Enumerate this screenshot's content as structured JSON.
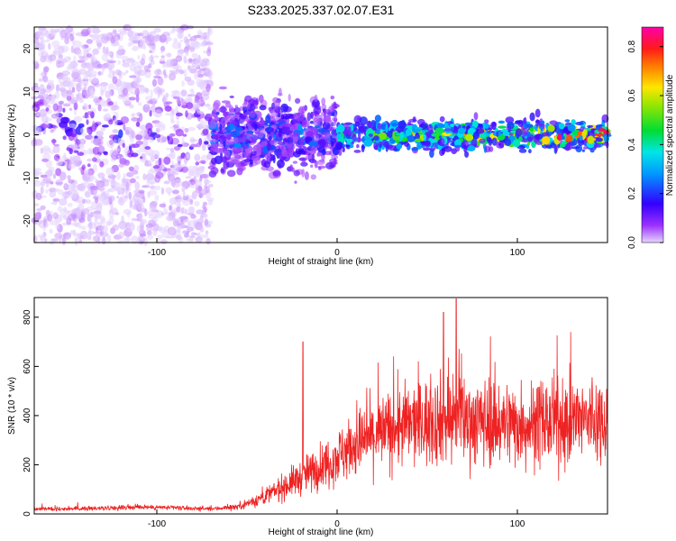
{
  "chart_data": [
    {
      "type": "heatmap",
      "title": "S233.2025.337.02.07.E31",
      "xlabel": "Height of straight line (km)",
      "ylabel": "Frequency (Hz)",
      "xlim": [
        -168,
        150
      ],
      "ylim": [
        -25,
        25
      ],
      "xticks": [
        -100,
        0,
        100
      ],
      "yticks": [
        -20,
        -10,
        0,
        10,
        20
      ],
      "colorbar": {
        "label": "Normalized spectral amplitude",
        "range": [
          0.0,
          0.88
        ],
        "ticks": [
          0.0,
          0.2,
          0.4,
          0.6,
          0.8
        ],
        "colormap": "rainbow (purple-blue-cyan-green-yellow-red-magenta)"
      },
      "regions": [
        {
          "x_range": [
            -168,
            -70
          ],
          "freq_band": [
            -25,
            25
          ],
          "amplitude": [
            0.0,
            0.2
          ],
          "description": "broadband low-amplitude noise"
        },
        {
          "x_range": [
            -70,
            0
          ],
          "freq_band": [
            -12,
            12
          ],
          "amplitude": [
            0.05,
            0.3
          ],
          "description": "signal band widening"
        },
        {
          "x_range": [
            0,
            150
          ],
          "freq_band": [
            -5,
            5
          ],
          "amplitude": [
            0.1,
            0.88
          ],
          "description": "narrow band near 0 Hz, increasing amplitude"
        }
      ]
    },
    {
      "type": "line",
      "xlabel": "Height of straight line (km)",
      "ylabel": "SNR (10 * v/v)",
      "xlim": [
        -168,
        150
      ],
      "ylim": [
        0,
        880
      ],
      "xticks": [
        -100,
        0,
        100
      ],
      "yticks": [
        0,
        200,
        400,
        600,
        800
      ],
      "series": [
        {
          "name": "SNR",
          "color": "#ee2222",
          "x": [
            -168,
            -140,
            -110,
            -90,
            -70,
            -55,
            -45,
            -35,
            -25,
            -15,
            -5,
            5,
            15,
            25,
            35,
            45,
            55,
            65,
            75,
            85,
            95,
            105,
            115,
            125,
            135,
            150
          ],
          "values": [
            20,
            22,
            28,
            25,
            20,
            30,
            55,
            90,
            130,
            170,
            210,
            260,
            300,
            330,
            355,
            370,
            380,
            385,
            380,
            375,
            370,
            365,
            370,
            375,
            380,
            385
          ]
        }
      ],
      "peaks": [
        {
          "x": -19,
          "y": 700
        },
        {
          "x": 66,
          "y": 875
        },
        {
          "x": 59,
          "y": 820
        }
      ]
    }
  ]
}
